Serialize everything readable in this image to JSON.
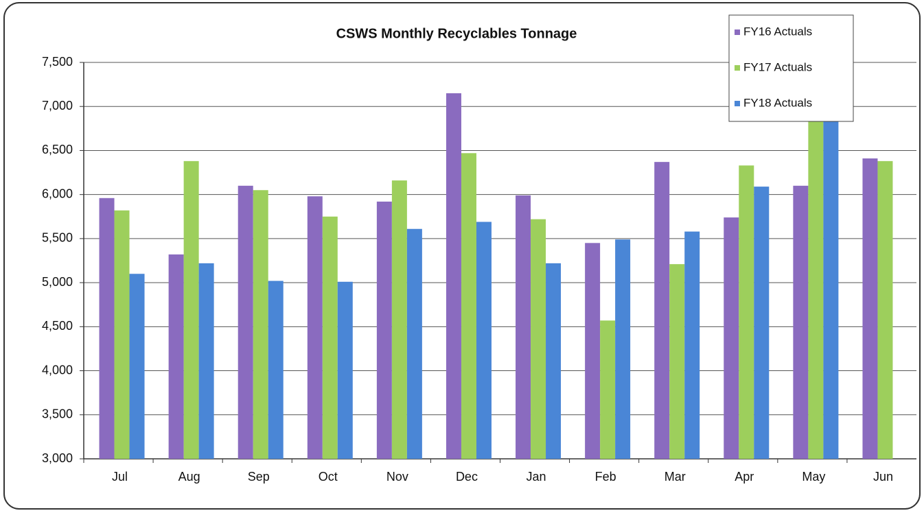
{
  "chart_data": {
    "type": "bar",
    "title": "CSWS Monthly Recyclables Tonnage",
    "categories": [
      "Jul",
      "Aug",
      "Sep",
      "Oct",
      "Nov",
      "Dec",
      "Jan",
      "Feb",
      "Mar",
      "Apr",
      "May",
      "Jun"
    ],
    "series": [
      {
        "name": "FY16 Actuals",
        "color": "#8a6bbf",
        "values": [
          5960,
          5320,
          6100,
          5980,
          5920,
          7150,
          5990,
          5450,
          6370,
          5740,
          6100,
          6410
        ]
      },
      {
        "name": "FY17 Actuals",
        "color": "#9dcf5c",
        "values": [
          5820,
          6380,
          6050,
          5750,
          6160,
          6470,
          5720,
          4570,
          5210,
          6330,
          6900,
          6380
        ]
      },
      {
        "name": "FY18 Actuals",
        "color": "#4a86d6",
        "values": [
          5100,
          5220,
          5020,
          5010,
          5610,
          5690,
          5220,
          5490,
          5580,
          6090,
          6900,
          null
        ]
      }
    ],
    "ylim": [
      3000,
      7500
    ],
    "yticks": [
      {
        "value": 3000,
        "label": "3,000"
      },
      {
        "value": 3500,
        "label": "3,500"
      },
      {
        "value": 4000,
        "label": "4,000"
      },
      {
        "value": 4500,
        "label": "4,500"
      },
      {
        "value": 5000,
        "label": "5,000"
      },
      {
        "value": 5500,
        "label": "5,500"
      },
      {
        "value": 6000,
        "label": "6,000"
      },
      {
        "value": 6500,
        "label": "6,500"
      },
      {
        "value": 7000,
        "label": "7,000"
      },
      {
        "value": 7500,
        "label": "7,500"
      }
    ],
    "grid": true,
    "legend": "top-right"
  }
}
